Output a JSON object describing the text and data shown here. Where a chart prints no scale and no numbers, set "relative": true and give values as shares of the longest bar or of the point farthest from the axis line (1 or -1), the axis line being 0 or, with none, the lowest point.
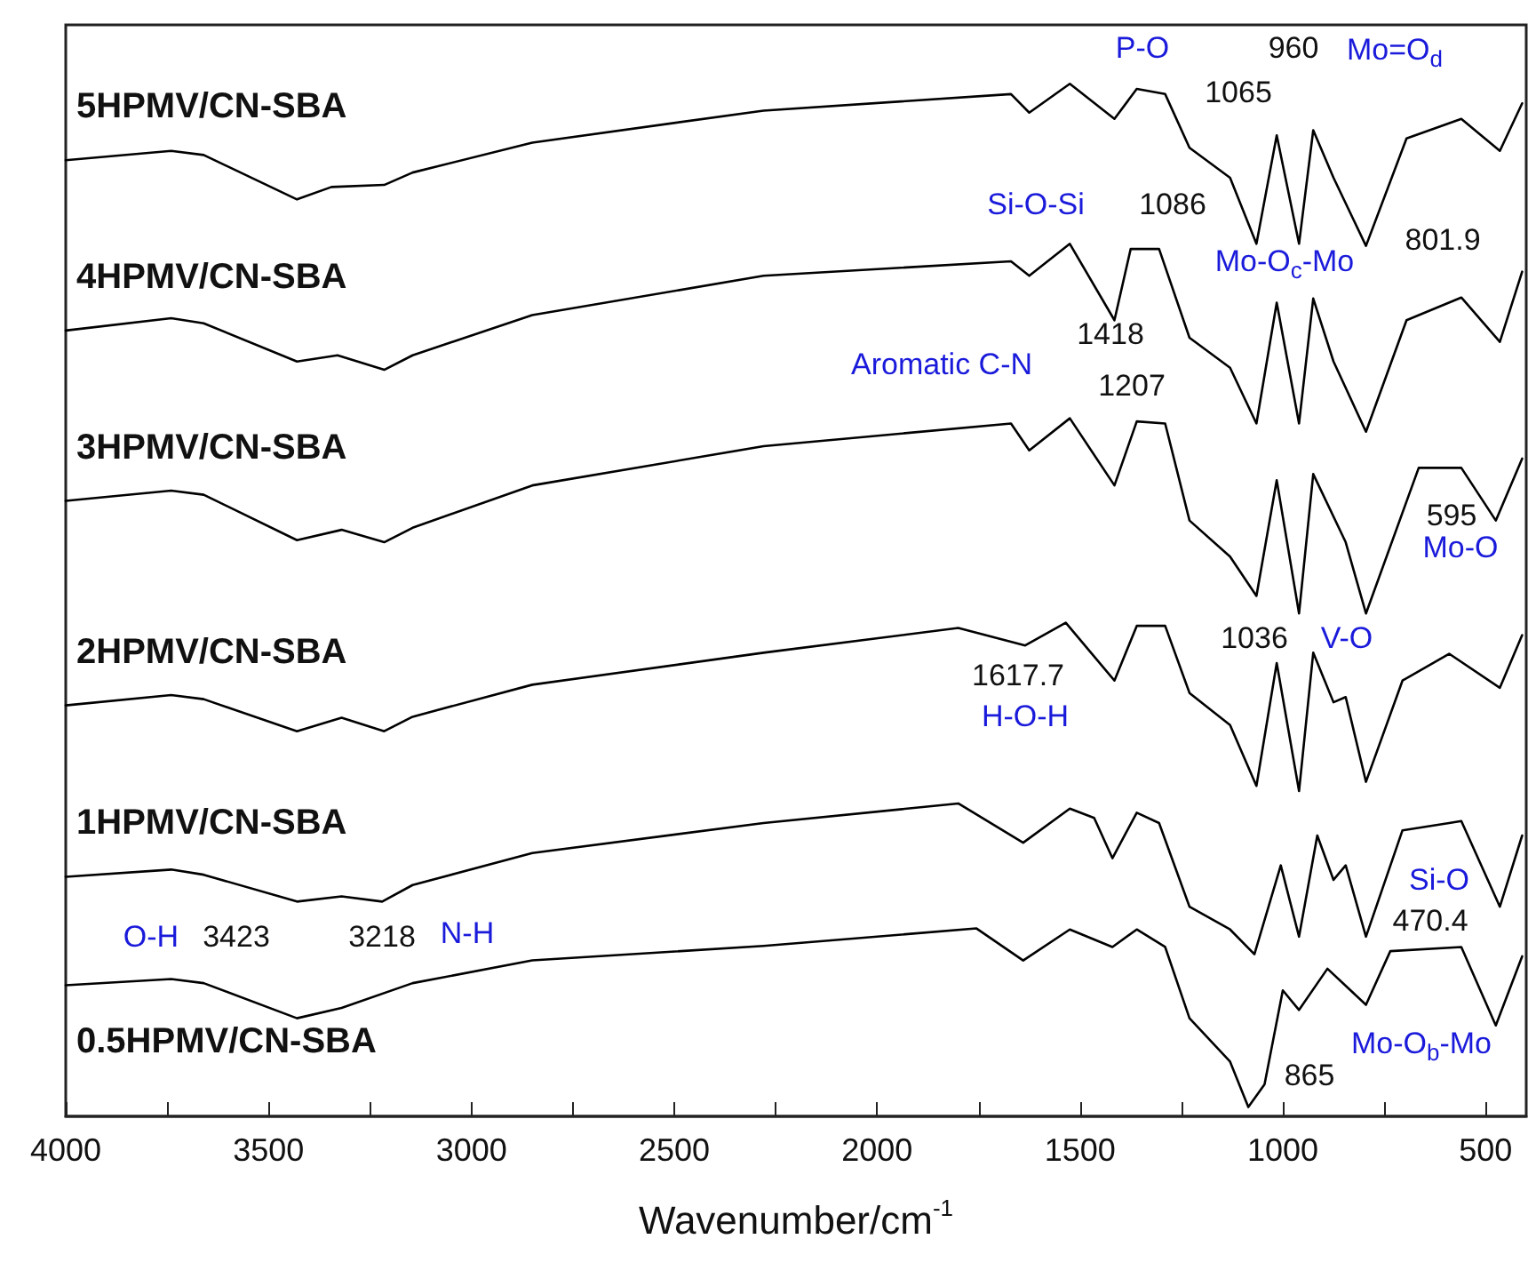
{
  "chart_data": {
    "type": "line",
    "relative": true,
    "xlabel": "Wavenumber/cm$^{-1}$",
    "xlim": [
      4000,
      400
    ],
    "xticks": [
      4000,
      {
        "value": 3750,
        "label": null
      },
      3500,
      {
        "value": 3250,
        "label": null
      },
      3000,
      {
        "value": 2750,
        "label": null
      },
      2500,
      {
        "value": 2250,
        "label": null
      },
      2000,
      {
        "value": 1750,
        "label": null
      },
      1500,
      {
        "value": 1250,
        "label": null
      },
      1000,
      {
        "value": 750,
        "label": null
      },
      500
    ],
    "tick_labels": "x",
    "grid": false,
    "legend": false,
    "marker": "none",
    "line_style": "solid",
    "series": [
      {
        "name": "5HPMV/CN-SBA",
        "color": "#000000",
        "x": [
          4000,
          3740,
          3660,
          3430,
          3345,
          3215,
          3145,
          2850,
          2280,
          1670,
          1625,
          1525,
          1415,
          1360,
          1290,
          1230,
          1130,
          1065,
          1015,
          960,
          925,
          875,
          795,
          695,
          560,
          465,
          410
        ],
        "values": [
          0.926,
          0.935,
          0.931,
          0.888,
          0.9,
          0.902,
          0.914,
          0.943,
          0.974,
          0.99,
          0.972,
          1.0,
          0.966,
          0.995,
          0.99,
          0.938,
          0.909,
          0.845,
          0.95,
          0.845,
          0.955,
          0.909,
          0.843,
          0.947,
          0.966,
          0.935,
          0.981
        ]
      },
      {
        "name": "4HPMV/CN-SBA",
        "color": "#000000",
        "x": [
          4000,
          3740,
          3660,
          3430,
          3330,
          3215,
          3145,
          2850,
          2280,
          1670,
          1625,
          1525,
          1415,
          1375,
          1305,
          1230,
          1130,
          1065,
          1015,
          960,
          925,
          875,
          795,
          695,
          560,
          465,
          410
        ],
        "values": [
          0.761,
          0.773,
          0.768,
          0.731,
          0.737,
          0.723,
          0.737,
          0.776,
          0.814,
          0.828,
          0.814,
          0.845,
          0.771,
          0.84,
          0.84,
          0.754,
          0.725,
          0.671,
          0.788,
          0.671,
          0.792,
          0.731,
          0.663,
          0.771,
          0.793,
          0.75,
          0.818
        ]
      },
      {
        "name": "3HPMV/CN-SBA",
        "color": "#000000",
        "x": [
          4000,
          3740,
          3660,
          3430,
          3320,
          3215,
          3145,
          2850,
          2280,
          1670,
          1625,
          1525,
          1415,
          1360,
          1290,
          1230,
          1130,
          1065,
          1015,
          960,
          925,
          845,
          795,
          665,
          560,
          475,
          410
        ],
        "values": [
          0.596,
          0.606,
          0.602,
          0.558,
          0.568,
          0.556,
          0.57,
          0.611,
          0.649,
          0.671,
          0.645,
          0.676,
          0.611,
          0.673,
          0.671,
          0.577,
          0.542,
          0.504,
          0.616,
          0.487,
          0.622,
          0.556,
          0.487,
          0.628,
          0.628,
          0.577,
          0.637
        ]
      },
      {
        "name": "2HPMV/CN-SBA",
        "color": "#000000",
        "x": [
          4000,
          3740,
          3660,
          3430,
          3320,
          3215,
          3145,
          2850,
          2280,
          1800,
          1635,
          1535,
          1415,
          1360,
          1290,
          1230,
          1130,
          1065,
          1015,
          960,
          925,
          875,
          845,
          795,
          705,
          590,
          465,
          410
        ],
        "values": [
          0.398,
          0.408,
          0.404,
          0.373,
          0.386,
          0.373,
          0.387,
          0.418,
          0.449,
          0.473,
          0.456,
          0.478,
          0.422,
          0.475,
          0.475,
          0.41,
          0.379,
          0.32,
          0.439,
          0.315,
          0.449,
          0.401,
          0.406,
          0.324,
          0.422,
          0.448,
          0.415,
          0.466
        ]
      },
      {
        "name": "1HPMV/CN-SBA",
        "color": "#000000",
        "x": [
          4000,
          3740,
          3660,
          3430,
          3320,
          3220,
          3145,
          2850,
          2280,
          1800,
          1640,
          1525,
          1465,
          1420,
          1360,
          1305,
          1230,
          1130,
          1070,
          1005,
          960,
          915,
          875,
          845,
          795,
          705,
          590,
          560,
          465,
          410
        ],
        "values": [
          0.232,
          0.239,
          0.234,
          0.208,
          0.213,
          0.208,
          0.224,
          0.255,
          0.284,
          0.303,
          0.265,
          0.298,
          0.289,
          0.25,
          0.294,
          0.284,
          0.203,
          0.181,
          0.157,
          0.243,
          0.174,
          0.272,
          0.229,
          0.243,
          0.174,
          0.277,
          0.284,
          0.286,
          0.203,
          0.272
        ]
      },
      {
        "name": "0.5HPMV/CN-SBA",
        "color": "#000000",
        "x": [
          4000,
          3740,
          3660,
          3430,
          3320,
          3145,
          2850,
          2280,
          1755,
          1640,
          1525,
          1420,
          1360,
          1290,
          1230,
          1130,
          1085,
          1045,
          1000,
          960,
          890,
          795,
          735,
          560,
          475,
          410
        ],
        "values": [
          0.127,
          0.133,
          0.129,
          0.095,
          0.105,
          0.129,
          0.151,
          0.165,
          0.182,
          0.151,
          0.181,
          0.164,
          0.181,
          0.164,
          0.095,
          0.053,
          0.009,
          0.031,
          0.122,
          0.103,
          0.143,
          0.108,
          0.16,
          0.164,
          0.088,
          0.155
        ]
      }
    ],
    "annotations": [
      "P-O",
      "1065",
      "960",
      "Mo=O$_{d}$",
      "Si-O-Si",
      "1086",
      "Mo-O$_{c}$-Mo",
      "801.9",
      "Aromatic C-N",
      "1418",
      "1207",
      "595",
      "Mo-O",
      "1036",
      "V-O",
      "1617.7",
      "H-O-H",
      "Si-O",
      "470.4",
      "865",
      "Mo-O$_{b}$-Mo",
      "O-H",
      "3423",
      "3218",
      "N-H"
    ]
  }
}
